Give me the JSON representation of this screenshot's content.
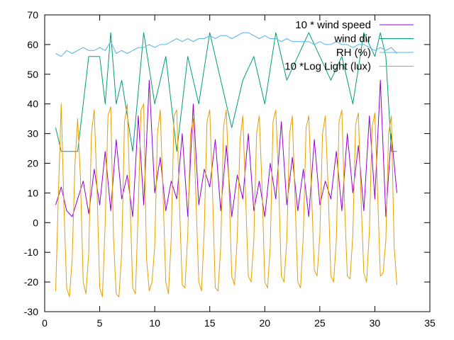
{
  "chart_data": {
    "type": "line",
    "title": "",
    "xlabel": "",
    "ylabel": "",
    "xlim": [
      0,
      35
    ],
    "ylim": [
      -30,
      70
    ],
    "x_ticks": [
      "0",
      "5",
      "10",
      "15",
      "20",
      "25",
      "30",
      "35"
    ],
    "y_ticks": [
      "-30",
      "-20",
      "-10",
      "0",
      "10",
      "20",
      "30",
      "40",
      "50",
      "60",
      "70"
    ],
    "grid": false,
    "legend_position": "top-right",
    "series": [
      {
        "name": "10 * wind speed",
        "color": "#9400d3",
        "x": [
          1.0,
          1.5,
          2.0,
          2.5,
          3.0,
          3.5,
          4.0,
          4.5,
          5.0,
          5.5,
          6.0,
          6.5,
          7.0,
          7.5,
          8.0,
          8.5,
          9.0,
          9.5,
          10.0,
          10.5,
          11.0,
          11.5,
          12.0,
          12.5,
          13.0,
          13.5,
          14.0,
          14.5,
          15.0,
          15.5,
          16.0,
          16.5,
          17.0,
          17.5,
          18.0,
          18.5,
          19.0,
          19.5,
          20.0,
          20.5,
          21.0,
          21.5,
          22.0,
          22.5,
          23.0,
          23.5,
          24.0,
          24.5,
          25.0,
          25.5,
          26.0,
          26.5,
          27.0,
          27.5,
          28.0,
          28.5,
          29.0,
          29.5,
          30.0,
          30.5,
          31.0,
          31.5,
          32.0
        ],
        "y": [
          6,
          12,
          4,
          2,
          8,
          14,
          3,
          18,
          6,
          24,
          4,
          28,
          8,
          16,
          2,
          36,
          6,
          48,
          10,
          22,
          4,
          14,
          8,
          30,
          2,
          40,
          6,
          18,
          12,
          28,
          4,
          26,
          2,
          16,
          8,
          30,
          4,
          14,
          2,
          20,
          8,
          34,
          6,
          22,
          4,
          18,
          2,
          28,
          6,
          14,
          8,
          24,
          4,
          30,
          10,
          26,
          4,
          36,
          8,
          48,
          2,
          30,
          10
        ]
      },
      {
        "name": "wind dir",
        "color": "#009e73",
        "x": [
          1.0,
          1.5,
          2.0,
          3.0,
          3.5,
          4.0,
          5.0,
          5.5,
          6.0,
          6.5,
          7.0,
          8.0,
          9.0,
          10.0,
          11.0,
          12.0,
          13.0,
          14.0,
          15.0,
          16.0,
          17.0,
          18.0,
          19.0,
          20.0,
          21.0,
          22.0,
          23.0,
          24.0,
          25.0,
          26.0,
          27.0,
          28.0,
          29.0,
          30.0,
          30.5,
          31.0,
          31.5,
          32.0
        ],
        "y": [
          32,
          24,
          24,
          24,
          40,
          56,
          56,
          40,
          64,
          40,
          48,
          24,
          64,
          40,
          56,
          24,
          56,
          40,
          64,
          48,
          32,
          48,
          56,
          40,
          64,
          48,
          56,
          64,
          56,
          48,
          56,
          40,
          64,
          56,
          64,
          56,
          24,
          24
        ]
      },
      {
        "name": "RH (%)",
        "color": "#56b4e9",
        "x": [
          1.0,
          1.5,
          2.0,
          2.5,
          3.0,
          3.5,
          4.0,
          4.5,
          5.0,
          5.5,
          6.0,
          6.5,
          7.0,
          7.5,
          8.0,
          8.5,
          9.0,
          9.5,
          10.0,
          10.5,
          11.0,
          11.5,
          12.0,
          12.5,
          13.0,
          13.5,
          14.0,
          14.5,
          15.0,
          15.5,
          16.0,
          16.5,
          17.0,
          17.5,
          18.0,
          18.5,
          19.0,
          19.5,
          20.0,
          20.5,
          21.0,
          21.5,
          22.0,
          22.5,
          23.0,
          23.5,
          24.0,
          24.5,
          25.0,
          25.5,
          26.0,
          26.5,
          27.0,
          27.5,
          28.0,
          28.5,
          29.0,
          29.5,
          30.0,
          30.5,
          31.0,
          31.5,
          32.0
        ],
        "y": [
          57,
          56,
          58,
          57,
          58,
          59,
          58,
          58,
          59,
          58,
          61,
          57,
          58,
          57,
          58,
          59,
          59,
          60,
          59,
          60,
          60,
          61,
          62,
          61,
          62,
          61,
          62,
          62,
          63,
          62,
          63,
          63,
          62,
          63,
          64,
          64,
          63,
          62,
          63,
          62,
          62,
          61,
          62,
          61,
          61,
          61,
          61,
          60,
          61,
          60,
          60,
          61,
          60,
          60,
          59,
          60,
          60,
          59,
          58,
          59,
          58,
          59,
          57
        ]
      },
      {
        "name": "10 *Log Light (lux)",
        "color": "#e69f00",
        "x": [
          1.0,
          1.25,
          1.5,
          1.75,
          2.0,
          2.25,
          2.5,
          2.75,
          3.0,
          3.25,
          3.5,
          3.75,
          4.0,
          4.25,
          4.5,
          4.75,
          5.0,
          5.25,
          5.5,
          5.75,
          6.0,
          6.25,
          6.5,
          6.75,
          7.0,
          7.25,
          7.5,
          7.75,
          8.0,
          8.25,
          8.5,
          8.75,
          9.0,
          9.25,
          9.5,
          9.75,
          10.0,
          10.25,
          10.5,
          10.75,
          11.0,
          11.25,
          11.5,
          11.75,
          12.0,
          12.25,
          12.5,
          12.75,
          13.0,
          13.25,
          13.5,
          13.75,
          14.0,
          14.25,
          14.5,
          14.75,
          15.0,
          15.25,
          15.5,
          15.75,
          16.0,
          16.25,
          16.5,
          16.75,
          17.0,
          17.25,
          17.5,
          17.75,
          18.0,
          18.25,
          18.5,
          18.75,
          19.0,
          19.25,
          19.5,
          19.75,
          20.0,
          20.25,
          20.5,
          20.75,
          21.0,
          21.25,
          21.5,
          21.75,
          22.0,
          22.25,
          22.5,
          22.75,
          23.0,
          23.25,
          23.5,
          23.75,
          24.0,
          24.25,
          24.5,
          24.75,
          25.0,
          25.25,
          25.5,
          25.75,
          26.0,
          26.25,
          26.5,
          26.75,
          27.0,
          27.25,
          27.5,
          27.75,
          28.0,
          28.25,
          28.5,
          28.75,
          29.0,
          29.25,
          29.5,
          29.75,
          30.0,
          30.25,
          30.5,
          30.75,
          31.0,
          31.25,
          31.5,
          31.75,
          32.0
        ],
        "y": [
          -23,
          10,
          40,
          5,
          -22,
          -25,
          -12,
          20,
          35,
          15,
          -20,
          -24,
          -10,
          30,
          38,
          12,
          -22,
          -25,
          0,
          36,
          39,
          -5,
          -24,
          -25,
          -10,
          34,
          40,
          8,
          -22,
          -24,
          5,
          38,
          40,
          -12,
          -23,
          -20,
          -8,
          30,
          38,
          10,
          -20,
          -24,
          -5,
          36,
          38,
          6,
          -21,
          -22,
          -4,
          30,
          35,
          8,
          -20,
          -23,
          -2,
          34,
          38,
          10,
          -22,
          -23,
          -8,
          32,
          38,
          12,
          -18,
          -21,
          -5,
          28,
          36,
          10,
          -18,
          -20,
          -6,
          30,
          36,
          12,
          -20,
          -22,
          -8,
          34,
          38,
          14,
          -18,
          -20,
          -6,
          30,
          36,
          8,
          -20,
          -22,
          -4,
          32,
          36,
          10,
          -16,
          -18,
          -4,
          30,
          36,
          12,
          -18,
          -20,
          -6,
          34,
          38,
          6,
          -18,
          -19,
          -4,
          33,
          37,
          8,
          -17,
          -20,
          -3,
          32,
          37,
          10,
          -18,
          -17,
          -6,
          30,
          36,
          -8,
          -21
        ]
      }
    ]
  }
}
